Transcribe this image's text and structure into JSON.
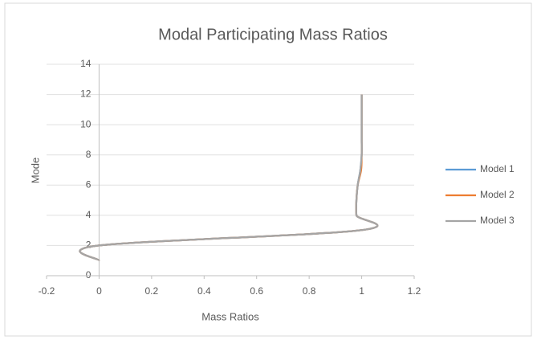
{
  "chart_data": {
    "type": "scatter",
    "title": "Modal Participating Mass Ratios",
    "x_label": "Mass Ratios",
    "y_label": "Mode",
    "series": [
      {
        "name": "Model 1",
        "color": "#5b9bd5",
        "x": [
          0,
          0,
          0.99,
          0.98,
          0.98,
          0.985,
          0.995,
          1,
          1,
          1,
          1,
          1
        ],
        "values": [
          1,
          2,
          3,
          4,
          5,
          6,
          7,
          8,
          9,
          10,
          11,
          12
        ]
      },
      {
        "name": "Model 2",
        "color": "#ed7d31",
        "x": [
          0,
          0,
          0.99,
          0.98,
          0.98,
          0.985,
          0.998,
          1,
          1,
          1,
          1,
          1
        ],
        "values": [
          1,
          2,
          3,
          4,
          5,
          6,
          7,
          8,
          9,
          10,
          11,
          12
        ]
      },
      {
        "name": "Model 3",
        "color": "#a5a5a5",
        "x": [
          0,
          0,
          0.99,
          0.98,
          0.98,
          0.985,
          0.995,
          1,
          1,
          1,
          1,
          1
        ],
        "values": [
          1,
          2,
          3,
          4,
          5,
          6,
          7,
          8,
          9,
          10,
          11,
          12
        ]
      }
    ],
    "xlim": [
      -0.2,
      1.2
    ],
    "xticks": [
      -0.2,
      0,
      0.2,
      0.4,
      0.6,
      0.8,
      1,
      1.2
    ],
    "ylim": [
      0,
      14
    ],
    "yticks": [
      0,
      2,
      4,
      6,
      8,
      10,
      12,
      14
    ],
    "grid": true,
    "legend": "right"
  }
}
